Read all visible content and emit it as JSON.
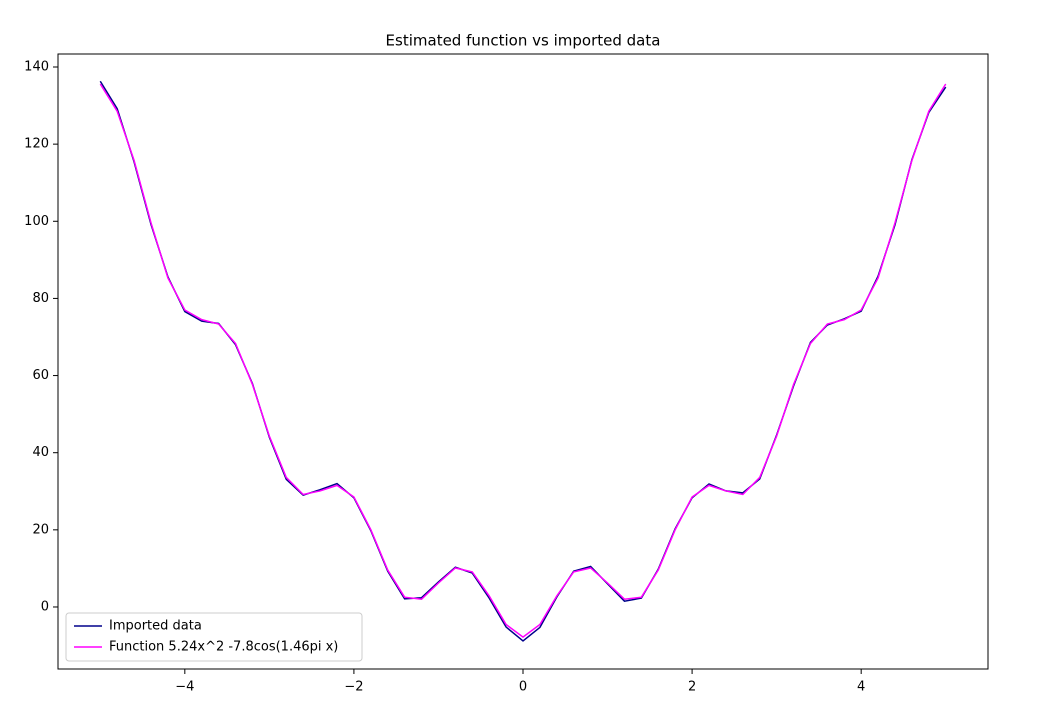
{
  "chart_data": {
    "type": "line",
    "title": "Estimated function vs imported data",
    "x": [
      -5,
      -4.8,
      -4.6,
      -4.4,
      -4.2,
      -4,
      -3.8,
      -3.6,
      -3.4,
      -3.2,
      -3,
      -2.8,
      -2.6,
      -2.4,
      -2.2,
      -2,
      -1.8,
      -1.6,
      -1.4,
      -1.2,
      -1,
      -0.8,
      -0.6,
      -0.4,
      -0.2,
      0,
      0.2,
      0.4,
      0.6,
      0.8,
      1,
      1.2,
      1.4,
      1.6,
      1.8,
      2,
      2.2,
      2.4,
      2.6,
      2.8,
      3,
      3.2,
      3.4,
      3.6,
      3.8,
      4,
      4.2,
      4.4,
      4.6,
      4.8,
      5
    ],
    "series": [
      {
        "name": "Imported data",
        "color": "#00008b",
        "values": [
          136.3,
          129.2,
          115.4,
          99.2,
          85.6,
          76.6,
          74.1,
          73.5,
          68.0,
          57.9,
          44.0,
          33.1,
          29.0,
          30.4,
          32.0,
          28.3,
          19.8,
          9.3,
          2.1,
          2.4,
          6.5,
          10.3,
          8.8,
          2.3,
          -5.2,
          -8.8,
          -5.3,
          2.6,
          9.3,
          10.5,
          6.0,
          1.5,
          2.3,
          9.8,
          20.3,
          28.3,
          31.9,
          30.1,
          29.6,
          33.2,
          44.6,
          57.3,
          68.6,
          73.1,
          74.7,
          76.7,
          85.8,
          99.1,
          116.0,
          128.2,
          134.8
        ]
      },
      {
        "name": "Function 5.24x^2 -7.8cos(1.46pi x)",
        "color": "#ff00ff",
        "values": [
          135.6,
          128.53,
          115.77,
          99.6,
          85.29,
          77.0,
          74.5,
          73.36,
          68.32,
          57.67,
          44.29,
          33.58,
          29.17,
          30.08,
          31.53,
          28.52,
          20.03,
          9.57,
          2.54,
          2.01,
          6.22,
          10.11,
          9.1,
          2.87,
          -4.54,
          -7.8,
          -4.54,
          2.87,
          9.1,
          10.11,
          6.22,
          2.01,
          2.54,
          9.57,
          20.03,
          28.52,
          31.53,
          30.08,
          29.17,
          33.58,
          44.29,
          57.67,
          68.32,
          73.36,
          74.5,
          77.0,
          85.29,
          99.6,
          115.77,
          128.53,
          135.6
        ]
      }
    ],
    "xlim": [
      -5.5,
      5.5
    ],
    "ylim": [
      -16.08,
      143.37
    ],
    "xticks": [
      {
        "value": -4,
        "label": "−4"
      },
      {
        "value": -2,
        "label": "−2"
      },
      0,
      2,
      4
    ],
    "yticks": [
      0,
      20,
      40,
      60,
      80,
      100,
      120,
      140
    ],
    "legend": "lower left"
  }
}
